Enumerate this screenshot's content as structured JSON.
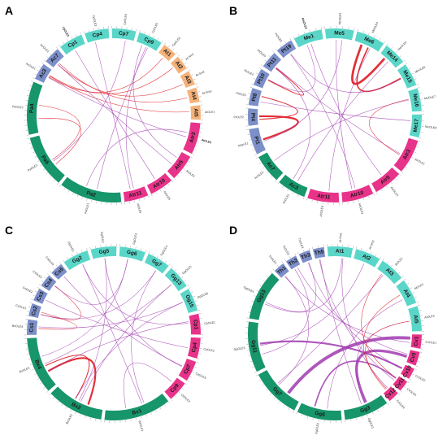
{
  "figure": {
    "colors": {
      "teal": "#5ad6c8",
      "green": "#17956b",
      "blue": "#7c8fc9",
      "orange": "#f4b27a",
      "magenta": "#e8338a",
      "link_purple": "#a03ab0",
      "link_red": "#e0242b"
    },
    "panels": [
      {
        "letter": "A",
        "segments": [
          {
            "name": "Cp1",
            "color": "teal",
            "span": 10
          },
          {
            "name": "Cp4",
            "color": "teal",
            "span": 10
          },
          {
            "name": "Cp7",
            "color": "teal",
            "span": 10
          },
          {
            "name": "Cp9",
            "color": "teal",
            "span": 10
          },
          {
            "name": "At1",
            "color": "orange",
            "span": 6
          },
          {
            "name": "At2",
            "color": "orange",
            "span": 6
          },
          {
            "name": "At3",
            "color": "orange",
            "span": 6
          },
          {
            "name": "At4",
            "color": "orange",
            "span": 6
          },
          {
            "name": "At5",
            "color": "orange",
            "span": 6
          },
          {
            "name": "Atr3",
            "color": "magenta",
            "span": 13
          },
          {
            "name": "Atr5",
            "color": "magenta",
            "span": 11
          },
          {
            "name": "Atr10",
            "color": "magenta",
            "span": 10
          },
          {
            "name": "Atr11",
            "color": "magenta",
            "span": 10
          },
          {
            "name": "Pa2",
            "color": "green",
            "span": 26
          },
          {
            "name": "Pa5",
            "color": "green",
            "span": 22
          },
          {
            "name": "Pa4",
            "color": "green",
            "span": 22
          },
          {
            "name": "Ac3",
            "color": "blue",
            "span": 7
          },
          {
            "name": "Ac7",
            "color": "blue",
            "span": 7
          }
        ],
        "genes": [
          "CpOLE1",
          "CpOLE2",
          "CpOLE3",
          "CpOLE4",
          "CpOLE5",
          "CpOLE6",
          "At-Sm1",
          "At-Sm2",
          "At-Sm3",
          "AtOLE1",
          "AtOLE2",
          "AtOLE3",
          "AtOLE4",
          "AtOLE5",
          "AtOLE6",
          "PaOLE1",
          "PaOLE2",
          "PaOLE3",
          "AcOLE1",
          "AcOLE2"
        ],
        "links": [
          {
            "from": 3,
            "to": 10,
            "color": "link_purple"
          },
          {
            "from": 3,
            "to": 13,
            "color": "link_purple"
          },
          {
            "from": 0,
            "to": 11,
            "color": "link_purple"
          },
          {
            "from": 1,
            "to": 12,
            "color": "link_purple"
          },
          {
            "from": 2,
            "to": 14,
            "color": "link_purple"
          },
          {
            "from": 4,
            "to": 16,
            "color": "link_red"
          },
          {
            "from": 5,
            "to": 16,
            "color": "link_red"
          },
          {
            "from": 6,
            "to": 17,
            "color": "link_red"
          },
          {
            "from": 7,
            "to": 17,
            "color": "link_red"
          },
          {
            "from": 8,
            "to": 16,
            "color": "link_red"
          },
          {
            "from": 15,
            "to": 14,
            "color": "link_red"
          },
          {
            "from": 15,
            "to": 14,
            "color": "link_red"
          },
          {
            "from": 16,
            "to": 9,
            "color": "link_purple"
          },
          {
            "from": 17,
            "to": 10,
            "color": "link_purple"
          },
          {
            "from": 13,
            "to": 9,
            "color": "link_purple"
          },
          {
            "from": 12,
            "to": 3,
            "color": "link_purple"
          }
        ]
      },
      {
        "letter": "B",
        "segments": [
          {
            "name": "Me1",
            "color": "teal",
            "span": 10
          },
          {
            "name": "Me5",
            "color": "teal",
            "span": 10
          },
          {
            "name": "Me6",
            "color": "teal",
            "span": 10
          },
          {
            "name": "Me14",
            "color": "teal",
            "span": 8
          },
          {
            "name": "Me15",
            "color": "teal",
            "span": 8
          },
          {
            "name": "Me16",
            "color": "teal",
            "span": 8
          },
          {
            "name": "Me17",
            "color": "teal",
            "span": 8
          },
          {
            "name": "Atr3",
            "color": "magenta",
            "span": 12
          },
          {
            "name": "Atr5",
            "color": "magenta",
            "span": 10
          },
          {
            "name": "Atr10",
            "color": "magenta",
            "span": 11
          },
          {
            "name": "Atr11",
            "color": "magenta",
            "span": 11
          },
          {
            "name": "Ac3",
            "color": "green",
            "span": 10
          },
          {
            "name": "Ac7",
            "color": "green",
            "span": 10
          },
          {
            "name": "Pt1",
            "color": "blue",
            "span": 9
          },
          {
            "name": "Pt4",
            "color": "blue",
            "span": 6
          },
          {
            "name": "Pt8",
            "color": "blue",
            "span": 6
          },
          {
            "name": "Pt10",
            "color": "blue",
            "span": 6
          },
          {
            "name": "Pt11",
            "color": "blue",
            "span": 6
          },
          {
            "name": "Pt19",
            "color": "blue",
            "span": 6
          }
        ],
        "genes": [
          "MeOLE1",
          "MeOLE2",
          "MeOLE3",
          "MeOLE4",
          "MeOLE5",
          "MeOLE6",
          "MeOLE7",
          "MeOLE8",
          "AtrOLE1",
          "AtrOLE2",
          "AtrOLE3",
          "AtrOLE4",
          "AcOLE1",
          "AcOLE2",
          "PtOLE1",
          "PtOLE2",
          "PtOLE3",
          "PtOLE4",
          "PtOLE5",
          "PtOLE6"
        ],
        "links": [
          {
            "from": 2,
            "to": 3,
            "color": "link_red",
            "w": 5
          },
          {
            "from": 2,
            "to": 4,
            "color": "link_red",
            "w": 3
          },
          {
            "from": 13,
            "to": 14,
            "color": "link_red",
            "w": 4
          },
          {
            "from": 14,
            "to": 15,
            "color": "link_red",
            "w": 2
          },
          {
            "from": 16,
            "to": 17,
            "color": "link_red",
            "w": 2
          },
          {
            "from": 0,
            "to": 8,
            "color": "link_purple"
          },
          {
            "from": 1,
            "to": 9,
            "color": "link_purple"
          },
          {
            "from": 2,
            "to": 10,
            "color": "link_purple"
          },
          {
            "from": 3,
            "to": 11,
            "color": "link_purple"
          },
          {
            "from": 5,
            "to": 12,
            "color": "link_purple"
          },
          {
            "from": 6,
            "to": 15,
            "color": "link_purple"
          },
          {
            "from": 7,
            "to": 17,
            "color": "link_purple"
          },
          {
            "from": 4,
            "to": 18,
            "color": "link_purple"
          },
          {
            "from": 0,
            "to": 16,
            "color": "link_purple"
          },
          {
            "from": 1,
            "to": 13,
            "color": "link_purple"
          },
          {
            "from": 9,
            "to": 18,
            "color": "link_purple"
          },
          {
            "from": 5,
            "to": 7,
            "color": "link_red"
          },
          {
            "from": 11,
            "to": 17,
            "color": "link_purple"
          }
        ]
      },
      {
        "letter": "C",
        "segments": [
          {
            "name": "Gg2",
            "color": "teal",
            "span": 10
          },
          {
            "name": "Gg5",
            "color": "teal",
            "span": 10
          },
          {
            "name": "Gg6",
            "color": "teal",
            "span": 10
          },
          {
            "name": "Gg7",
            "color": "teal",
            "span": 9
          },
          {
            "name": "Gg13",
            "color": "teal",
            "span": 9
          },
          {
            "name": "Gg15",
            "color": "teal",
            "span": 9
          },
          {
            "name": "Cp1",
            "color": "magenta",
            "span": 8
          },
          {
            "name": "Cp4",
            "color": "magenta",
            "span": 8
          },
          {
            "name": "Cp7",
            "color": "magenta",
            "span": 8
          },
          {
            "name": "Cp9",
            "color": "magenta",
            "span": 8
          },
          {
            "name": "Bx1",
            "color": "green",
            "span": 26
          },
          {
            "name": "Bx2",
            "color": "green",
            "span": 22
          },
          {
            "name": "Bx4",
            "color": "green",
            "span": 22
          },
          {
            "name": "Cs1",
            "color": "blue",
            "span": 6
          },
          {
            "name": "Cs2",
            "color": "blue",
            "span": 5
          },
          {
            "name": "Cs3",
            "color": "blue",
            "span": 5
          },
          {
            "name": "Cs4",
            "color": "blue",
            "span": 5
          },
          {
            "name": "Cs5",
            "color": "blue",
            "span": 5
          }
        ],
        "genes": [
          "GgOLE1",
          "GgOLE2",
          "GgOLE3",
          "GgOLE4",
          "GgOLE5",
          "GgOLE6",
          "CpOLE1",
          "CpOLE2",
          "CpOLE3",
          "CpOLE4",
          "BxOLE1",
          "BxOLE2",
          "BxOLE3",
          "BxOLE4",
          "CsOLE1",
          "CsOLE2",
          "CsOLE3",
          "CsOLE4"
        ],
        "links": [
          {
            "from": 11,
            "to": 12,
            "color": "link_red",
            "w": 4
          },
          {
            "from": 11,
            "to": 12,
            "color": "link_red",
            "w": 2
          },
          {
            "from": 13,
            "to": 14,
            "color": "link_red"
          },
          {
            "from": 14,
            "to": 16,
            "color": "link_red"
          },
          {
            "from": 0,
            "to": 10,
            "color": "link_purple"
          },
          {
            "from": 1,
            "to": 11,
            "color": "link_purple"
          },
          {
            "from": 2,
            "to": 12,
            "color": "link_purple"
          },
          {
            "from": 3,
            "to": 10,
            "color": "link_purple"
          },
          {
            "from": 4,
            "to": 11,
            "color": "link_purple"
          },
          {
            "from": 5,
            "to": 13,
            "color": "link_purple"
          },
          {
            "from": 6,
            "to": 12,
            "color": "link_purple"
          },
          {
            "from": 7,
            "to": 15,
            "color": "link_purple"
          },
          {
            "from": 8,
            "to": 17,
            "color": "link_purple"
          },
          {
            "from": 9,
            "to": 10,
            "color": "link_purple"
          },
          {
            "from": 0,
            "to": 6,
            "color": "link_purple"
          },
          {
            "from": 1,
            "to": 8,
            "color": "link_purple"
          },
          {
            "from": 2,
            "to": 16,
            "color": "link_purple"
          },
          {
            "from": 3,
            "to": 14,
            "color": "link_purple"
          },
          {
            "from": 4,
            "to": 12,
            "color": "link_purple"
          },
          {
            "from": 5,
            "to": 11,
            "color": "link_purple"
          }
        ]
      },
      {
        "letter": "D",
        "segments": [
          {
            "name": "At1",
            "color": "teal",
            "span": 9
          },
          {
            "name": "At2",
            "color": "teal",
            "span": 9
          },
          {
            "name": "At3",
            "color": "teal",
            "span": 9
          },
          {
            "name": "At4",
            "color": "teal",
            "span": 9
          },
          {
            "name": "At5",
            "color": "teal",
            "span": 9
          },
          {
            "name": "Cv1",
            "color": "magenta",
            "span": 5
          },
          {
            "name": "Cv3",
            "color": "magenta",
            "span": 5
          },
          {
            "name": "Cv10",
            "color": "magenta",
            "span": 4
          },
          {
            "name": "Cv11",
            "color": "magenta",
            "span": 4
          },
          {
            "name": "Cv12",
            "color": "magenta",
            "span": 4
          },
          {
            "name": "Gg3",
            "color": "green",
            "span": 16
          },
          {
            "name": "Gg6",
            "color": "green",
            "span": 16
          },
          {
            "name": "Gg7",
            "color": "green",
            "span": 18
          },
          {
            "name": "Gg11",
            "color": "green",
            "span": 18
          },
          {
            "name": "Gg13",
            "color": "green",
            "span": 18
          },
          {
            "name": "Th1",
            "color": "blue",
            "span": 4
          },
          {
            "name": "Th2",
            "color": "blue",
            "span": 4
          },
          {
            "name": "Th3",
            "color": "blue",
            "span": 4
          },
          {
            "name": "Th5",
            "color": "blue",
            "span": 4
          }
        ],
        "genes": [
          "At-Sm1",
          "At-Sm2",
          "AtOLE1",
          "AtOLE2",
          "AtOLE3",
          "CvOLE1",
          "CvOLE2",
          "CvOLE3",
          "CvOLE4",
          "GgOLE1",
          "GgOLE2",
          "GgOLE3",
          "GgOLE4",
          "ThOLE1",
          "ThOLE2",
          "ThOLE3"
        ],
        "links": [
          {
            "from": 5,
            "to": 12,
            "color": "link_purple",
            "w": 7
          },
          {
            "from": 6,
            "to": 10,
            "color": "link_purple",
            "w": 6
          },
          {
            "from": 7,
            "to": 13,
            "color": "link_purple",
            "w": 4
          },
          {
            "from": 8,
            "to": 11,
            "color": "link_purple",
            "w": 3
          },
          {
            "from": 0,
            "to": 14,
            "color": "link_purple"
          },
          {
            "from": 1,
            "to": 13,
            "color": "link_purple"
          },
          {
            "from": 2,
            "to": 12,
            "color": "link_purple"
          },
          {
            "from": 3,
            "to": 11,
            "color": "link_purple"
          },
          {
            "from": 4,
            "to": 10,
            "color": "link_purple"
          },
          {
            "from": 15,
            "to": 12,
            "color": "link_purple"
          },
          {
            "from": 16,
            "to": 13,
            "color": "link_purple"
          },
          {
            "from": 17,
            "to": 14,
            "color": "link_purple"
          },
          {
            "from": 18,
            "to": 10,
            "color": "link_purple"
          },
          {
            "from": 15,
            "to": 5,
            "color": "link_purple"
          },
          {
            "from": 16,
            "to": 6,
            "color": "link_purple"
          },
          {
            "from": 17,
            "to": 7,
            "color": "link_purple"
          },
          {
            "from": 18,
            "to": 8,
            "color": "link_purple"
          },
          {
            "from": 0,
            "to": 9,
            "color": "link_purple"
          },
          {
            "from": 4,
            "to": 9,
            "color": "link_red"
          },
          {
            "from": 3,
            "to": 9,
            "color": "link_red"
          },
          {
            "from": 2,
            "to": 8,
            "color": "link_red"
          }
        ]
      }
    ]
  }
}
